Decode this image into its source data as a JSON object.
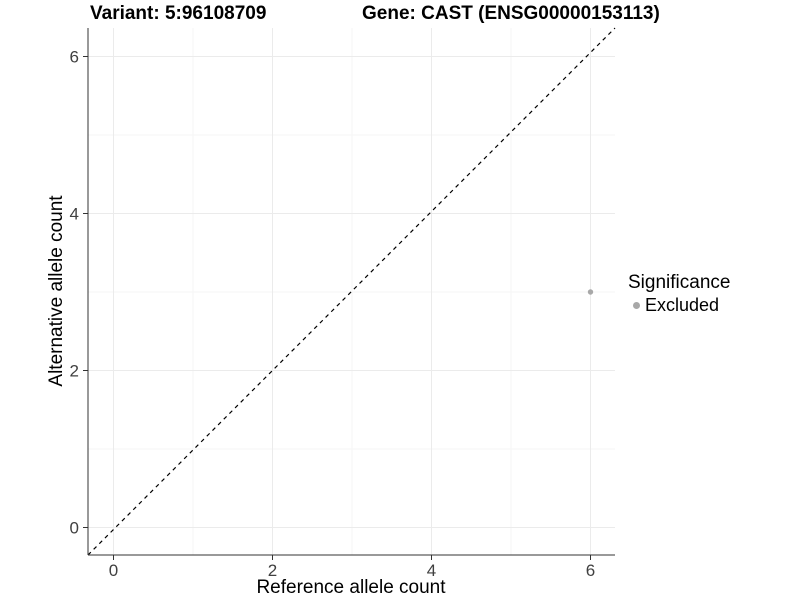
{
  "chart_data": {
    "type": "scatter",
    "title_left": "Variant: 5:96108709",
    "title_right": "Gene: CAST (ENSG00000153113)",
    "xlabel": "Reference allele count",
    "ylabel": "Alternative allele count",
    "xlim": [
      -0.32,
      6.32
    ],
    "ylim": [
      -0.32,
      6.32
    ],
    "x_ticks": [
      0,
      2,
      4,
      6
    ],
    "y_ticks": [
      0,
      2,
      4,
      6
    ],
    "x_minor_ticks": [
      1,
      3,
      5
    ],
    "y_minor_ticks": [
      1,
      3,
      5
    ],
    "grid": true,
    "identity_line": {
      "style": "dashed",
      "color": "#000000"
    },
    "series": [
      {
        "name": "Excluded",
        "color": "#a8a8a8",
        "points": [
          {
            "x": 6,
            "y": 3
          }
        ]
      }
    ],
    "legend": {
      "title": "Significance",
      "position": "right",
      "entries": [
        {
          "label": "Excluded",
          "color": "#a8a8a8"
        }
      ]
    },
    "style": {
      "axis_color": "#333333",
      "tick_label_color": "#404040",
      "grid_major_color": "#ebebeb",
      "grid_minor_color": "#f5f5f5",
      "background": "#ffffff"
    }
  }
}
